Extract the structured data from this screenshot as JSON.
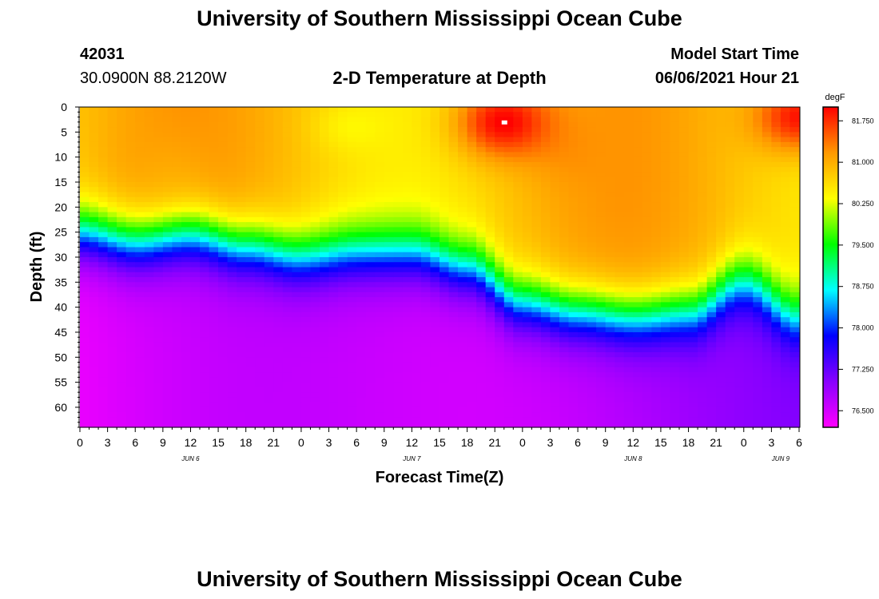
{
  "header": {
    "top_title": "University of Southern Mississippi Ocean Cube",
    "bottom_title": "University of Southern Mississippi Ocean Cube",
    "station_id": "42031",
    "station_coords": "30.0900N  88.2120W",
    "plot_title": "2-D Temperature at Depth",
    "model_start_label": "Model Start Time",
    "model_start_value": "06/06/2021 Hour 21"
  },
  "chart_data": {
    "type": "heatmap",
    "title": "2-D Temperature at Depth",
    "xlabel": "Forecast Time(Z)",
    "ylabel": "Depth (ft)",
    "x_range_hours": [
      0,
      78
    ],
    "x_ticks": [
      {
        "h": 0,
        "label": "0"
      },
      {
        "h": 3,
        "label": "3"
      },
      {
        "h": 6,
        "label": "6"
      },
      {
        "h": 9,
        "label": "9"
      },
      {
        "h": 12,
        "label": "12"
      },
      {
        "h": 15,
        "label": "15"
      },
      {
        "h": 18,
        "label": "18"
      },
      {
        "h": 21,
        "label": "21"
      },
      {
        "h": 24,
        "label": "0"
      },
      {
        "h": 27,
        "label": "3"
      },
      {
        "h": 30,
        "label": "6"
      },
      {
        "h": 33,
        "label": "9"
      },
      {
        "h": 36,
        "label": "12"
      },
      {
        "h": 39,
        "label": "15"
      },
      {
        "h": 42,
        "label": "18"
      },
      {
        "h": 45,
        "label": "21"
      },
      {
        "h": 48,
        "label": "0"
      },
      {
        "h": 51,
        "label": "3"
      },
      {
        "h": 54,
        "label": "6"
      },
      {
        "h": 57,
        "label": "9"
      },
      {
        "h": 60,
        "label": "12"
      },
      {
        "h": 63,
        "label": "15"
      },
      {
        "h": 66,
        "label": "18"
      },
      {
        "h": 69,
        "label": "21"
      },
      {
        "h": 72,
        "label": "0"
      },
      {
        "h": 75,
        "label": "3"
      },
      {
        "h": 78,
        "label": "6"
      }
    ],
    "date_labels": [
      {
        "h": 12,
        "label": "JUN 6"
      },
      {
        "h": 36,
        "label": "JUN 7"
      },
      {
        "h": 60,
        "label": "JUN 8"
      },
      {
        "h": 76,
        "label": "JUN 9"
      }
    ],
    "y_range_ft": [
      0,
      64
    ],
    "y_ticks": [
      0,
      5,
      10,
      15,
      20,
      25,
      30,
      35,
      40,
      45,
      50,
      55,
      60
    ],
    "colorbar": {
      "unit": "degF",
      "min": 76.2,
      "max": 82.0,
      "ticks": [
        "81.750",
        "81.000",
        "80.250",
        "79.500",
        "78.750",
        "78.000",
        "77.250",
        "76.500"
      ],
      "colors": [
        "#ff00ff",
        "#8800ff",
        "#0000ff",
        "#00ffff",
        "#00ff00",
        "#ffff00",
        "#ff9900",
        "#ff0000"
      ]
    },
    "thermocline_depth_ft": [
      {
        "h": 0,
        "d": 25
      },
      {
        "h": 6,
        "d": 27
      },
      {
        "h": 12,
        "d": 25.5
      },
      {
        "h": 18,
        "d": 28
      },
      {
        "h": 24,
        "d": 30
      },
      {
        "h": 30,
        "d": 29
      },
      {
        "h": 36,
        "d": 29
      },
      {
        "h": 42,
        "d": 32
      },
      {
        "h": 48,
        "d": 39
      },
      {
        "h": 54,
        "d": 41
      },
      {
        "h": 60,
        "d": 42
      },
      {
        "h": 66,
        "d": 41
      },
      {
        "h": 72,
        "d": 35
      },
      {
        "h": 78,
        "d": 42
      }
    ],
    "surface_hotspots": [
      {
        "h": 46,
        "d": 3,
        "value": 82.0
      },
      {
        "h": 78,
        "d": 2,
        "value": 81.9
      },
      {
        "h": 9,
        "d": 12,
        "value": 81.1
      },
      {
        "h": 55,
        "d": 10,
        "value": 81.2
      }
    ],
    "cool_spots": [
      {
        "h": 30,
        "d": 4,
        "value": 80.4
      }
    ]
  }
}
